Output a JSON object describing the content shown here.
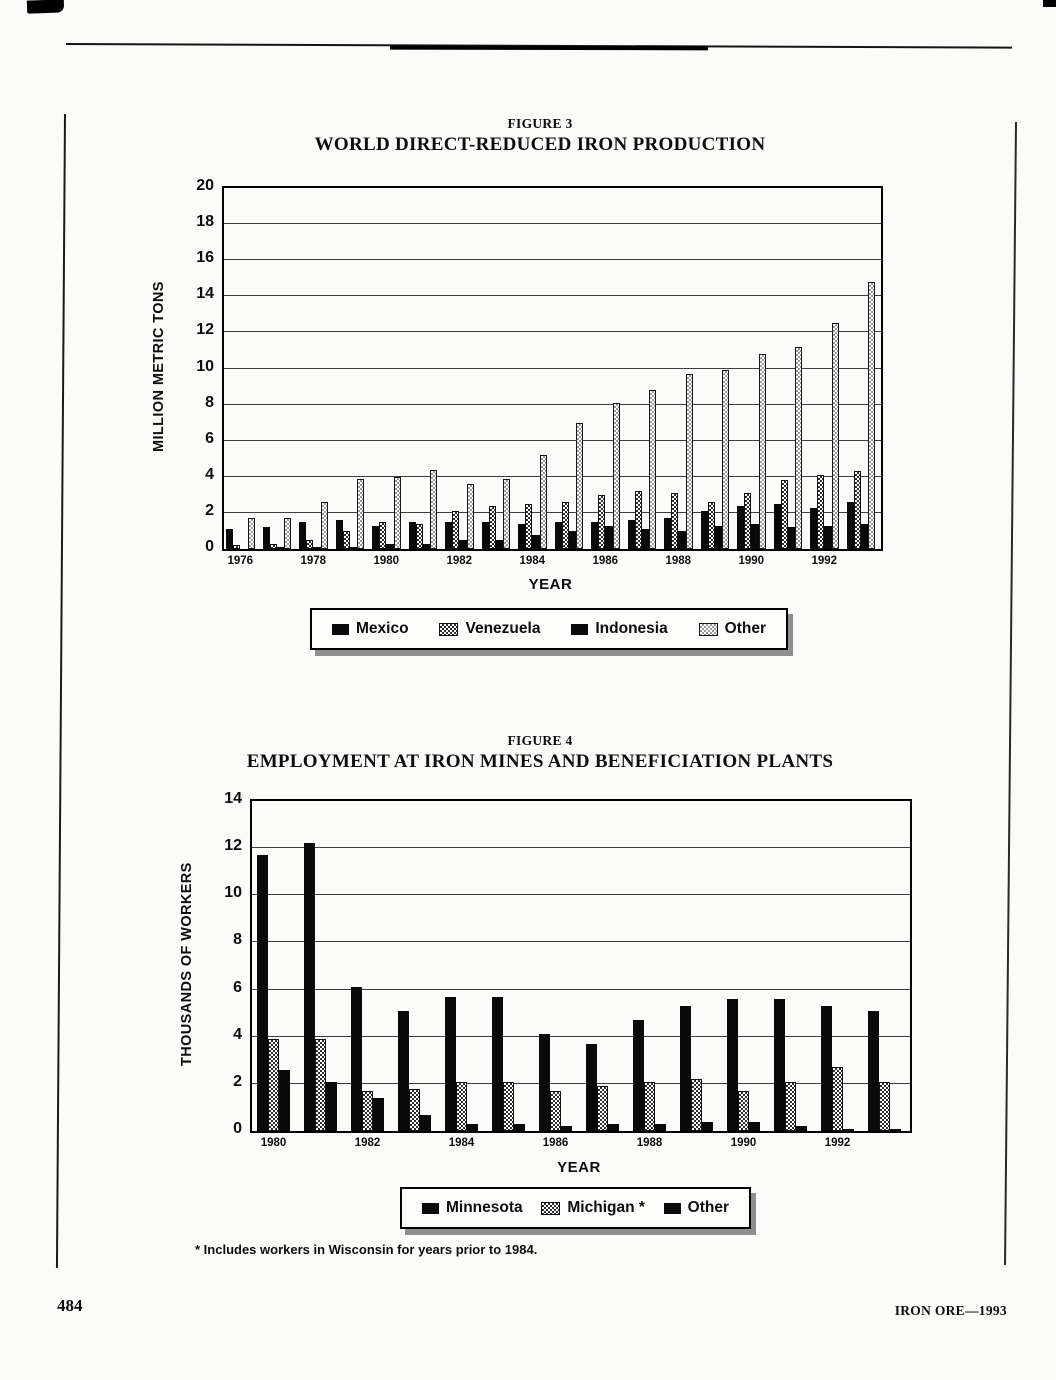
{
  "page": {
    "number": "484",
    "running_title": "IRON ORE—1993"
  },
  "figure3": {
    "label": "FIGURE 3",
    "title": "WORLD DIRECT-REDUCED IRON PRODUCTION",
    "ylabel": "MILLION METRIC TONS",
    "xlabel": "YEAR"
  },
  "figure4": {
    "label": "FIGURE 4",
    "title": "EMPLOYMENT AT IRON MINES AND BENEFICIATION PLANTS",
    "ylabel": "THOUSANDS OF WORKERS",
    "xlabel": "YEAR",
    "footnote": "* Includes workers in Wisconsin for years prior to 1984."
  },
  "chart_data": [
    {
      "type": "bar",
      "figure_label": "FIGURE 3",
      "title": "WORLD DIRECT-REDUCED IRON PRODUCTION",
      "xlabel": "YEAR",
      "ylabel": "MILLION METRIC TONS",
      "ylim": [
        0,
        20
      ],
      "ytick_step": 2,
      "grid": true,
      "legend_position": "bottom",
      "categories": [
        1976,
        1977,
        1978,
        1979,
        1980,
        1981,
        1982,
        1983,
        1984,
        1985,
        1986,
        1987,
        1988,
        1989,
        1990,
        1991,
        1992,
        1993
      ],
      "x_ticks": [
        {
          "index": 0,
          "label": "1976"
        },
        {
          "index": 2,
          "label": "1978"
        },
        {
          "index": 4,
          "label": "1980"
        },
        {
          "index": 6,
          "label": "1982"
        },
        {
          "index": 8,
          "label": "1984"
        },
        {
          "index": 10,
          "label": "1986"
        },
        {
          "index": 12,
          "label": "1988"
        },
        {
          "index": 14,
          "label": "1990"
        },
        {
          "index": 16,
          "label": "1992"
        }
      ],
      "series": [
        {
          "name": "Mexico",
          "pattern": "solid",
          "color": "#0a0a0a",
          "values": [
            1.1,
            1.2,
            1.5,
            1.6,
            1.3,
            1.5,
            1.5,
            1.5,
            1.4,
            1.5,
            1.5,
            1.6,
            1.7,
            2.1,
            2.4,
            2.5,
            2.3,
            2.6
          ]
        },
        {
          "name": "Venezuela",
          "pattern": "checker-dark",
          "color": "#2e2e2e",
          "values": [
            0.2,
            0.3,
            0.5,
            1.0,
            1.5,
            1.4,
            2.1,
            2.4,
            2.5,
            2.6,
            3.0,
            3.2,
            3.1,
            2.6,
            3.1,
            3.8,
            4.1,
            4.3
          ]
        },
        {
          "name": "Indonesia",
          "pattern": "solid",
          "color": "#0a0a0a",
          "values": [
            0.0,
            0.1,
            0.1,
            0.1,
            0.3,
            0.3,
            0.5,
            0.5,
            0.8,
            1.0,
            1.3,
            1.1,
            1.0,
            1.3,
            1.4,
            1.2,
            1.3,
            1.4
          ]
        },
        {
          "name": "Other",
          "pattern": "checker-light",
          "color": "#9a9a9a",
          "values": [
            1.7,
            1.7,
            2.6,
            3.9,
            4.0,
            4.4,
            3.6,
            3.9,
            5.2,
            7.0,
            8.1,
            8.8,
            9.7,
            9.9,
            10.8,
            11.2,
            12.5,
            14.8
          ]
        }
      ]
    },
    {
      "type": "bar",
      "figure_label": "FIGURE 4",
      "title": "EMPLOYMENT AT IRON MINES AND BENEFICIATION PLANTS",
      "xlabel": "YEAR",
      "ylabel": "THOUSANDS OF WORKERS",
      "ylim": [
        0,
        14
      ],
      "ytick_step": 2,
      "grid": true,
      "legend_position": "bottom",
      "footnote": "* Includes workers in Wisconsin for years prior to 1984.",
      "categories": [
        1980,
        1981,
        1982,
        1983,
        1984,
        1985,
        1986,
        1987,
        1988,
        1989,
        1990,
        1991,
        1992,
        1993
      ],
      "x_ticks": [
        {
          "index": 0,
          "label": "1980"
        },
        {
          "index": 2,
          "label": "1982"
        },
        {
          "index": 4,
          "label": "1984"
        },
        {
          "index": 6,
          "label": "1986"
        },
        {
          "index": 8,
          "label": "1988"
        },
        {
          "index": 10,
          "label": "1990"
        },
        {
          "index": 12,
          "label": "1992"
        }
      ],
      "series": [
        {
          "name": "Minnesota",
          "pattern": "solid",
          "color": "#0a0a0a",
          "values": [
            11.7,
            12.2,
            6.1,
            5.1,
            5.7,
            5.7,
            4.1,
            3.7,
            4.7,
            5.3,
            5.6,
            5.6,
            5.3,
            5.1
          ]
        },
        {
          "name": "Michigan *",
          "pattern": "checker-dark",
          "color": "#2e2e2e",
          "values": [
            3.9,
            3.9,
            1.7,
            1.8,
            2.1,
            2.1,
            1.7,
            1.9,
            2.1,
            2.2,
            1.7,
            2.1,
            2.7,
            2.1
          ]
        },
        {
          "name": "Other",
          "pattern": "solid",
          "color": "#0a0a0a",
          "values": [
            2.6,
            2.1,
            1.4,
            0.7,
            0.3,
            0.3,
            0.2,
            0.3,
            0.3,
            0.4,
            0.4,
            0.2,
            0.1,
            0.1
          ]
        }
      ]
    }
  ]
}
